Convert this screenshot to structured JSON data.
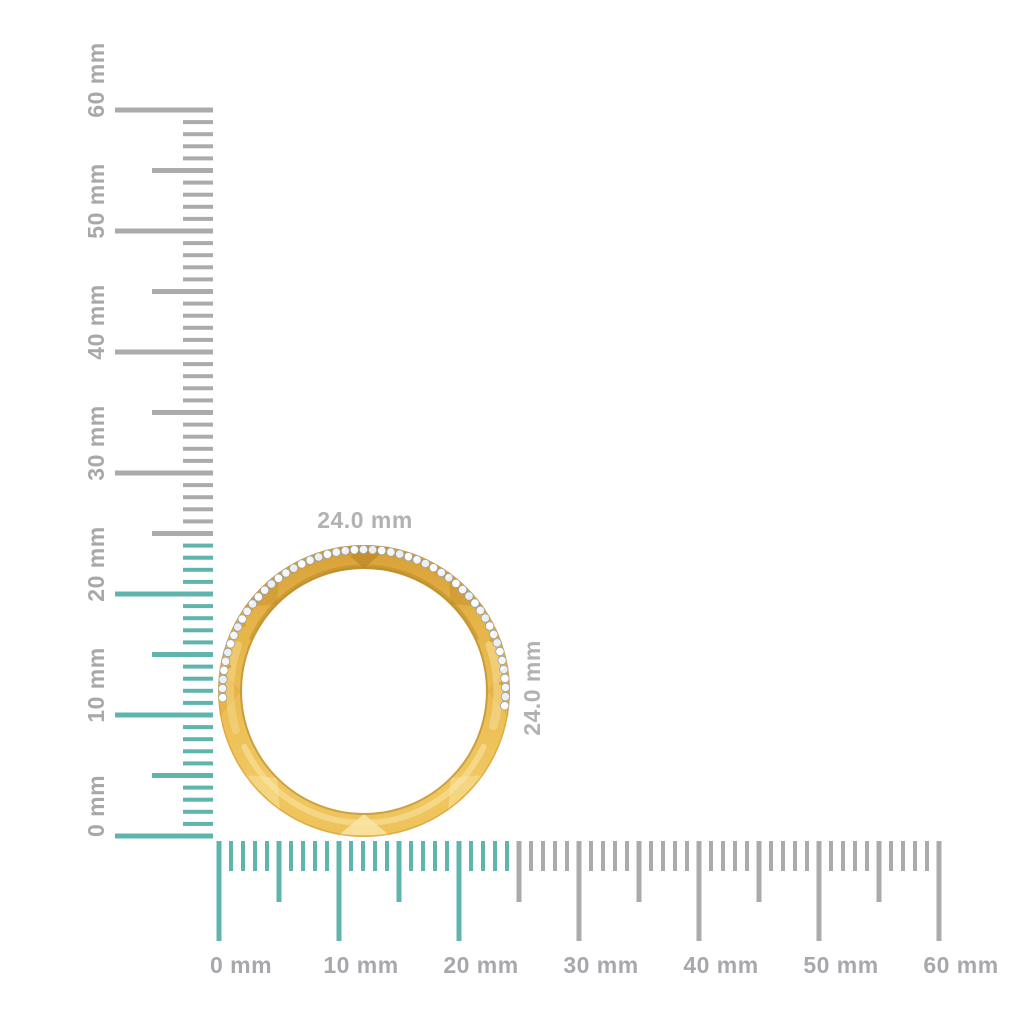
{
  "page": {
    "background": "#ffffff"
  },
  "rulers": {
    "unit_suffix": " mm",
    "min_mm": 0,
    "max_mm": 60,
    "minor_every_mm": 1,
    "mid_every_mm": 5,
    "major_every_mm": 10,
    "highlighted_range_mm": [
      0,
      24
    ],
    "colors": {
      "highlighted": "#60b4ae",
      "normal": "#ababab",
      "label": "#a6a8ab"
    },
    "vertical": {
      "labels": [
        "0 mm",
        "10 mm",
        "20 mm",
        "30 mm",
        "40 mm",
        "50 mm",
        "60 mm"
      ]
    },
    "horizontal": {
      "labels": [
        "0 mm",
        "10 mm",
        "20 mm",
        "30 mm",
        "40 mm",
        "50 mm",
        "60 mm"
      ]
    }
  },
  "dimensions": {
    "width": "24.0 mm",
    "height": "24.0 mm",
    "label_color": "#b0b2b4"
  },
  "ring": {
    "kind": "gold-diamond-eternity-band-side-view",
    "gold_base": "#ecbe55",
    "gold_dark": "#c68e2b",
    "gold_light": "#f7dd95",
    "diamond_fill": "#f3f5f7",
    "diamond_edge": "#9aa0a7",
    "prong_gold": "#d89e2f"
  }
}
